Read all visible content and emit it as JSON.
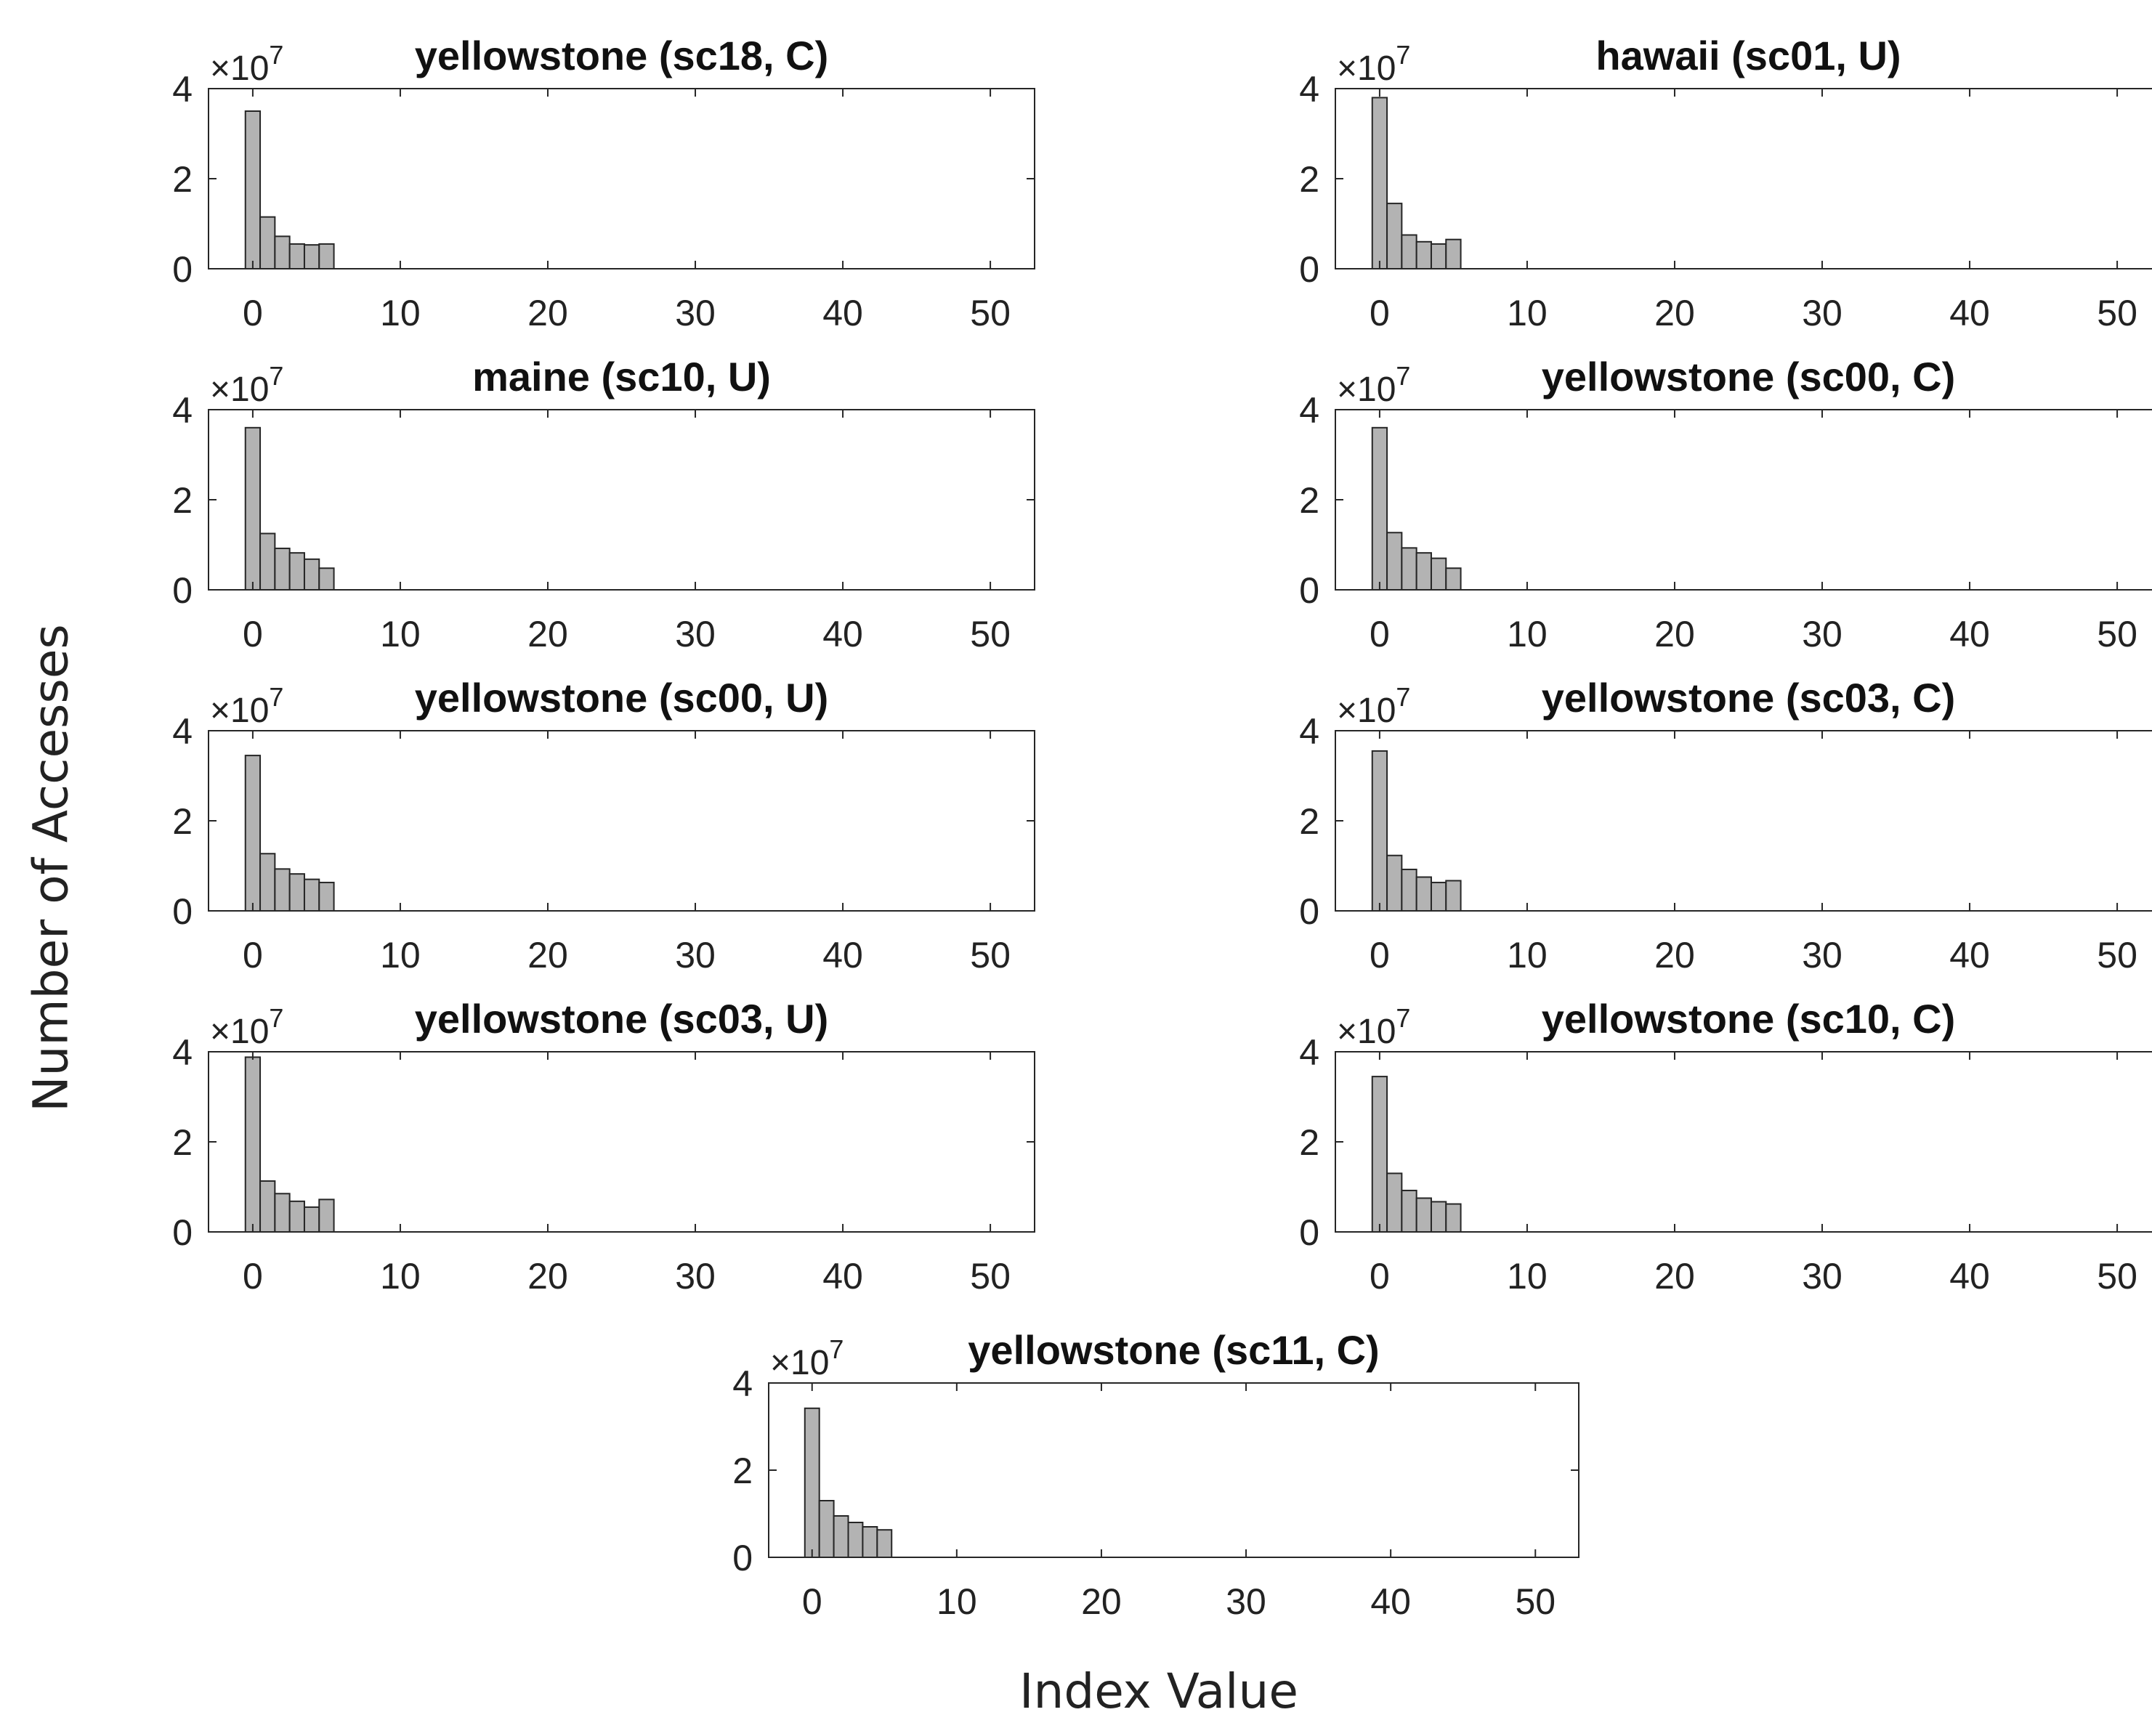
{
  "figure": {
    "xlabel": "Index Value",
    "ylabel": "Number of Accesses"
  },
  "colors": {
    "bar_fill": "#b3b3b3",
    "bar_stroke": "#262626",
    "axis": "#262626",
    "text": "#222222"
  },
  "chart_data": [
    {
      "type": "bar",
      "title": "yellowstone (sc18, C)",
      "x": [
        0,
        1,
        2,
        3,
        4,
        5,
        6
      ],
      "values": [
        3.5,
        1.15,
        0.72,
        0.55,
        0.53,
        0.55,
        0.0
      ],
      "y_multiplier": "×10",
      "y_exponent": "7",
      "xlim": [
        -3,
        53
      ],
      "ylim": [
        0,
        4
      ],
      "xticks": [
        0,
        10,
        20,
        30,
        40,
        50
      ],
      "yticks": [
        0,
        2,
        4
      ],
      "xlabel": "",
      "ylabel": ""
    },
    {
      "type": "bar",
      "title": "hawaii (sc01, U)",
      "x": [
        0,
        1,
        2,
        3,
        4,
        5,
        6
      ],
      "values": [
        3.8,
        1.45,
        0.75,
        0.6,
        0.55,
        0.65,
        0.0
      ],
      "y_multiplier": "×10",
      "y_exponent": "7",
      "xlim": [
        -3,
        53
      ],
      "ylim": [
        0,
        4
      ],
      "xticks": [
        0,
        10,
        20,
        30,
        40,
        50
      ],
      "yticks": [
        0,
        2,
        4
      ],
      "xlabel": "",
      "ylabel": ""
    },
    {
      "type": "bar",
      "title": "maine (sc10, U)",
      "x": [
        0,
        1,
        2,
        3,
        4,
        5,
        6
      ],
      "values": [
        3.6,
        1.25,
        0.92,
        0.82,
        0.68,
        0.48,
        0.0
      ],
      "y_multiplier": "×10",
      "y_exponent": "7",
      "xlim": [
        -3,
        53
      ],
      "ylim": [
        0,
        4
      ],
      "xticks": [
        0,
        10,
        20,
        30,
        40,
        50
      ],
      "yticks": [
        0,
        2,
        4
      ],
      "xlabel": "",
      "ylabel": ""
    },
    {
      "type": "bar",
      "title": "yellowstone (sc00, C)",
      "x": [
        0,
        1,
        2,
        3,
        4,
        5,
        6
      ],
      "values": [
        3.6,
        1.27,
        0.93,
        0.82,
        0.7,
        0.48,
        0.0
      ],
      "y_multiplier": "×10",
      "y_exponent": "7",
      "xlim": [
        -3,
        53
      ],
      "ylim": [
        0,
        4
      ],
      "xticks": [
        0,
        10,
        20,
        30,
        40,
        50
      ],
      "yticks": [
        0,
        2,
        4
      ],
      "xlabel": "",
      "ylabel": ""
    },
    {
      "type": "bar",
      "title": "yellowstone (sc00, U)",
      "x": [
        0,
        1,
        2,
        3,
        4,
        5,
        6
      ],
      "values": [
        3.45,
        1.27,
        0.93,
        0.82,
        0.7,
        0.63,
        0.0
      ],
      "y_multiplier": "×10",
      "y_exponent": "7",
      "xlim": [
        -3,
        53
      ],
      "ylim": [
        0,
        4
      ],
      "xticks": [
        0,
        10,
        20,
        30,
        40,
        50
      ],
      "yticks": [
        0,
        2,
        4
      ],
      "xlabel": "",
      "ylabel": ""
    },
    {
      "type": "bar",
      "title": "yellowstone (sc03, C)",
      "x": [
        0,
        1,
        2,
        3,
        4,
        5,
        6
      ],
      "values": [
        3.55,
        1.23,
        0.92,
        0.75,
        0.63,
        0.67,
        0.0
      ],
      "y_multiplier": "×10",
      "y_exponent": "7",
      "xlim": [
        -3,
        53
      ],
      "ylim": [
        0,
        4
      ],
      "xticks": [
        0,
        10,
        20,
        30,
        40,
        50
      ],
      "yticks": [
        0,
        2,
        4
      ],
      "xlabel": "",
      "ylabel": ""
    },
    {
      "type": "bar",
      "title": "yellowstone (sc03, U)",
      "x": [
        0,
        1,
        2,
        3,
        4,
        5,
        6
      ],
      "values": [
        3.88,
        1.13,
        0.85,
        0.68,
        0.55,
        0.72,
        0.0
      ],
      "y_multiplier": "×10",
      "y_exponent": "7",
      "xlim": [
        -3,
        53
      ],
      "ylim": [
        0,
        4
      ],
      "xticks": [
        0,
        10,
        20,
        30,
        40,
        50
      ],
      "yticks": [
        0,
        2,
        4
      ],
      "xlabel": "",
      "ylabel": ""
    },
    {
      "type": "bar",
      "title": "yellowstone (sc10, C)",
      "x": [
        0,
        1,
        2,
        3,
        4,
        5,
        6
      ],
      "values": [
        3.45,
        1.3,
        0.92,
        0.75,
        0.67,
        0.62,
        0.0
      ],
      "y_multiplier": "×10",
      "y_exponent": "7",
      "xlim": [
        -3,
        53
      ],
      "ylim": [
        0,
        4
      ],
      "xticks": [
        0,
        10,
        20,
        30,
        40,
        50
      ],
      "yticks": [
        0,
        2,
        4
      ],
      "xlabel": "",
      "ylabel": ""
    },
    {
      "type": "bar",
      "title": "yellowstone (sc11, C)",
      "x": [
        0,
        1,
        2,
        3,
        4,
        5,
        6
      ],
      "values": [
        3.42,
        1.3,
        0.95,
        0.8,
        0.7,
        0.63,
        0.0
      ],
      "y_multiplier": "×10",
      "y_exponent": "7",
      "xlim": [
        -3,
        53
      ],
      "ylim": [
        0,
        4
      ],
      "xticks": [
        0,
        10,
        20,
        30,
        40,
        50
      ],
      "yticks": [
        0,
        2,
        4
      ],
      "xlabel": "",
      "ylabel": ""
    }
  ]
}
